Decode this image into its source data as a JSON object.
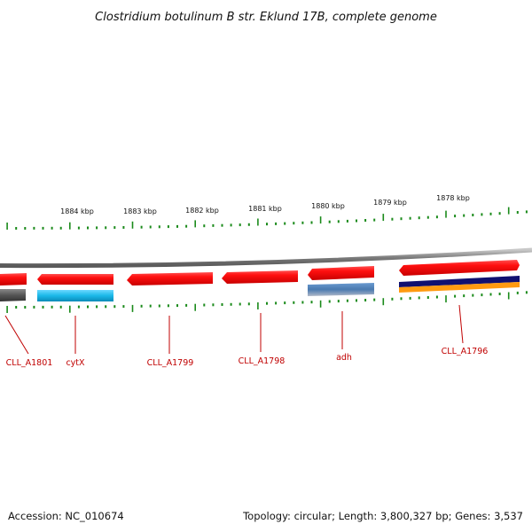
{
  "title": "Clostridium botulinum B str. Eklund 17B, complete genome",
  "kbp_labels": [
    "1884 kbp",
    "1883 kbp",
    "1882 kbp",
    "1881 kbp",
    "1880 kbp",
    "1879 kbp",
    "1878 kbp"
  ],
  "genes": [
    {
      "name": "CLL_A1801"
    },
    {
      "name": "cytX"
    },
    {
      "name": "CLL_A1799"
    },
    {
      "name": "CLL_A1798"
    },
    {
      "name": "adh"
    },
    {
      "name": "CLL_A1796"
    }
  ],
  "footer": {
    "accession": "Accession: NC_010674",
    "summary": "Topology: circular; Length: 3,800,327 bp; Genes: 3,537"
  },
  "colors": {
    "gene_red": "#ff1a1a",
    "backbone": "#8a8a8a",
    "tick": "#1a8a1a",
    "cyan": "#1ab8e8",
    "steel_blue": "#4a7ab0",
    "navy": "#101070",
    "orange": "#ff9a10",
    "dark_gray": "#555555",
    "label_red": "#c00000"
  }
}
